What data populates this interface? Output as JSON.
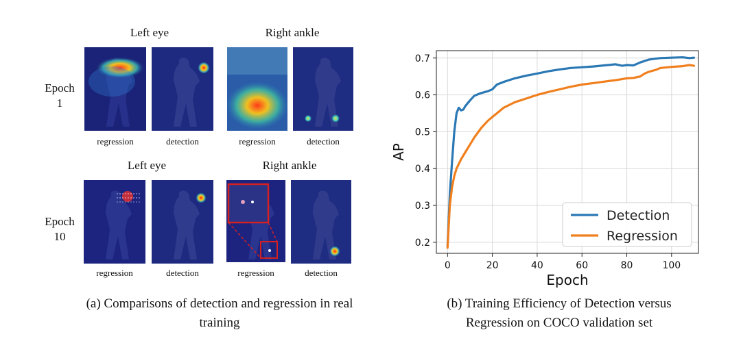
{
  "panel_a": {
    "column_headers": [
      "Left eye",
      "Right ankle",
      "Left eye",
      "Right ankle"
    ],
    "rows": [
      {
        "epoch_word": "Epoch",
        "epoch_num": "1"
      },
      {
        "epoch_word": "Epoch",
        "epoch_num": "10"
      }
    ],
    "image_labels": [
      "regression",
      "detection",
      "regression",
      "detection",
      "regression",
      "detection",
      "regression",
      "detection"
    ],
    "caption_lines": [
      "(a) Comparisons of detection and regression in real",
      "training"
    ]
  },
  "panel_b": {
    "caption_lines": [
      "(b) Training Efficiency of Detection versus",
      "Regression on COCO validation set"
    ]
  },
  "chart_data": {
    "type": "line",
    "title": "",
    "xlabel": "Epoch",
    "ylabel": "AP",
    "xlim": [
      -5,
      112
    ],
    "ylim": [
      0.17,
      0.72
    ],
    "xticks": [
      0,
      20,
      40,
      60,
      80,
      100
    ],
    "yticks": [
      0.2,
      0.3,
      0.4,
      0.5,
      0.6,
      0.7
    ],
    "xtick_labels": [
      "0",
      "20",
      "40",
      "60",
      "80",
      "100"
    ],
    "ytick_labels": [
      "0.2",
      "0.3",
      "0.4",
      "0.5",
      "0.6",
      "0.7"
    ],
    "grid": true,
    "legend_position": "lower-right",
    "series": [
      {
        "name": "Detection",
        "color": "#2a78b4",
        "x": [
          0,
          1,
          2,
          3,
          4,
          5,
          6,
          7,
          8,
          10,
          12,
          15,
          18,
          20,
          22,
          25,
          30,
          35,
          40,
          45,
          50,
          55,
          60,
          65,
          70,
          75,
          78,
          80,
          83,
          86,
          90,
          95,
          100,
          105,
          108,
          110
        ],
        "y": [
          0.19,
          0.33,
          0.42,
          0.5,
          0.55,
          0.565,
          0.558,
          0.56,
          0.57,
          0.585,
          0.598,
          0.605,
          0.61,
          0.615,
          0.628,
          0.635,
          0.645,
          0.652,
          0.658,
          0.664,
          0.669,
          0.673,
          0.675,
          0.677,
          0.68,
          0.683,
          0.679,
          0.681,
          0.68,
          0.688,
          0.696,
          0.7,
          0.701,
          0.702,
          0.7,
          0.701
        ]
      },
      {
        "name": "Regression",
        "color": "#f07f1e",
        "x": [
          0,
          1,
          2,
          3,
          4,
          6,
          8,
          10,
          12,
          15,
          18,
          20,
          22,
          25,
          30,
          35,
          40,
          45,
          50,
          55,
          60,
          65,
          70,
          75,
          80,
          83,
          86,
          88,
          90,
          93,
          95,
          100,
          105,
          108,
          110
        ],
        "y": [
          0.185,
          0.3,
          0.35,
          0.38,
          0.4,
          0.425,
          0.445,
          0.465,
          0.485,
          0.51,
          0.53,
          0.54,
          0.55,
          0.565,
          0.58,
          0.59,
          0.6,
          0.608,
          0.615,
          0.622,
          0.628,
          0.632,
          0.636,
          0.64,
          0.645,
          0.646,
          0.65,
          0.658,
          0.663,
          0.668,
          0.673,
          0.676,
          0.678,
          0.681,
          0.679
        ]
      }
    ]
  }
}
